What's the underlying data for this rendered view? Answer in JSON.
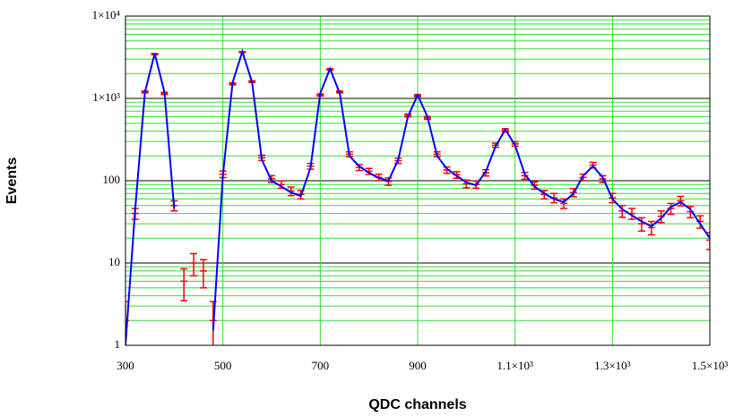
{
  "chart_data": {
    "type": "scatter",
    "x_label": "QDC channels",
    "y_label": "Events",
    "log_y": true,
    "grid": true,
    "minor_grid": true,
    "xlim": [
      300,
      1500
    ],
    "ylim": [
      1,
      10000
    ],
    "xticks": [
      300,
      500,
      700,
      900,
      {
        "value": 1100,
        "label": "1.1×10³"
      },
      {
        "value": 1300,
        "label": "1.3×10³"
      },
      {
        "value": 1500,
        "label": "1.5×10³"
      }
    ],
    "yticks": [
      1,
      10,
      100,
      {
        "value": 1000,
        "label": "1×10³"
      },
      {
        "value": 10000,
        "label": "1×10⁴"
      }
    ],
    "x": [
      300,
      320,
      340,
      360,
      380,
      400,
      420,
      440,
      460,
      480,
      500,
      520,
      540,
      560,
      580,
      600,
      620,
      640,
      660,
      680,
      700,
      720,
      740,
      760,
      780,
      800,
      820,
      840,
      860,
      880,
      900,
      920,
      940,
      960,
      980,
      1000,
      1020,
      1040,
      1060,
      1080,
      1100,
      1120,
      1140,
      1160,
      1180,
      1200,
      1220,
      1240,
      1260,
      1280,
      1300,
      1320,
      1340,
      1360,
      1380,
      1400,
      1420,
      1440,
      1460,
      1480,
      1500
    ],
    "series": [
      {
        "color": "#ff0000",
        "values": [
          2,
          40,
          1200,
          3450,
          1150,
          50,
          6,
          10,
          8,
          2,
          120,
          1500,
          3650,
          1600,
          190,
          105,
          90,
          75,
          68,
          150,
          1100,
          2250,
          1200,
          210,
          145,
          130,
          110,
          98,
          175,
          620,
          1080,
          580,
          210,
          135,
          118,
          92,
          90,
          125,
          270,
          410,
          280,
          115,
          88,
          68,
          62,
          53,
          72,
          110,
          155,
          105,
          62,
          43,
          40,
          30,
          27,
          37,
          46,
          57,
          42,
          32,
          19
        ],
        "errors": [
          1.4,
          6,
          35,
          59,
          34,
          7,
          2.5,
          3,
          3,
          1.4,
          11,
          39,
          60,
          40,
          14,
          10,
          9,
          9,
          8,
          12,
          33,
          47,
          35,
          14,
          12,
          11,
          10,
          10,
          13,
          25,
          33,
          24,
          14,
          12,
          11,
          10,
          9,
          11,
          16,
          20,
          17,
          11,
          9,
          8,
          8,
          7,
          8,
          10,
          12,
          10,
          8,
          7,
          6,
          5.5,
          5,
          6,
          7,
          7.5,
          6.5,
          5.5,
          4.4
        ]
      },
      {
        "color": "#0000ff",
        "style": "line",
        "values": [
          1,
          46,
          1190,
          3500,
          1190,
          46,
          null,
          null,
          null,
          1.5,
          116,
          1556,
          3700,
          1560,
          180,
          100,
          85,
          72,
          65,
          144,
          1150,
          2300,
          1150,
          200,
          150,
          125,
          108,
          100,
          180,
          600,
          1100,
          600,
          200,
          140,
          115,
          95,
          88,
          130,
          260,
          420,
          270,
          120,
          85,
          70,
          60,
          55,
          70,
          115,
          150,
          110,
          60,
          45,
          38,
          32,
          28,
          35,
          48,
          55,
          45,
          30,
          20
        ]
      }
    ]
  }
}
